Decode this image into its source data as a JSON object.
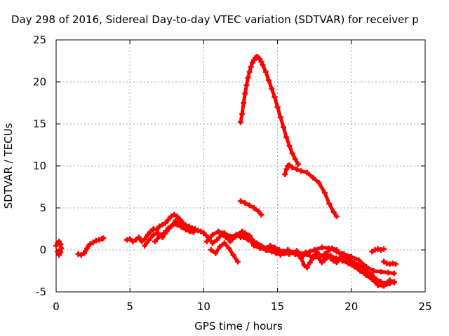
{
  "chart_data": {
    "type": "scatter",
    "title": "Day 298 of 2016, Sidereal Day-to-day VTEC variation (SDTVAR) for receiver p",
    "xlabel": "GPS time / hours",
    "ylabel": "SDTVAR / TECUs",
    "xlim": [
      0,
      25
    ],
    "ylim": [
      -5,
      25
    ],
    "xticks": [
      0,
      5,
      10,
      15,
      20,
      25
    ],
    "yticks": [
      -5,
      0,
      5,
      10,
      15,
      20,
      25
    ],
    "grid": true,
    "marker": "plus",
    "color": "#ff0000",
    "series": [
      {
        "x": [
          0.0,
          0.1,
          0.2,
          0.3,
          0.35,
          0.3,
          0.2,
          0.1
        ],
        "y": [
          0.5,
          0.8,
          1.0,
          0.7,
          0.2,
          -0.3,
          -0.6,
          -0.2
        ]
      },
      {
        "x": [
          1.5,
          1.7,
          1.9,
          2.0,
          2.1,
          2.2,
          2.3,
          2.5,
          2.7,
          2.9,
          3.1,
          3.2
        ],
        "y": [
          -0.5,
          -0.6,
          -0.4,
          -0.1,
          0.2,
          0.5,
          0.7,
          0.9,
          1.1,
          1.2,
          1.3,
          1.4
        ]
      },
      {
        "x": [
          4.8,
          5.0,
          5.2,
          5.4,
          5.6,
          5.8,
          6.0,
          6.2,
          6.4,
          6.6,
          6.8,
          7.0,
          7.2,
          7.4,
          7.6,
          7.8,
          8.0,
          8.2,
          8.4,
          8.6,
          8.8,
          9.0,
          9.2,
          9.4,
          9.6,
          9.8,
          10.0
        ],
        "y": [
          1.2,
          1.3,
          1.0,
          1.2,
          1.5,
          1.0,
          1.3,
          1.8,
          2.2,
          2.5,
          2.4,
          2.8,
          3.0,
          3.2,
          3.6,
          4.0,
          4.2,
          4.0,
          3.6,
          3.2,
          2.9,
          2.8,
          2.6,
          2.5,
          2.3,
          2.2,
          2.0
        ]
      },
      {
        "x": [
          6.0,
          6.3,
          6.6,
          6.9,
          7.2,
          7.5,
          7.8,
          8.1,
          8.4,
          8.7,
          9.0,
          9.3
        ],
        "y": [
          0.5,
          1.2,
          1.8,
          2.0,
          1.5,
          2.2,
          2.8,
          3.5,
          3.0,
          2.6,
          2.3,
          2.1
        ]
      },
      {
        "x": [
          6.7,
          7.0,
          7.3,
          7.6,
          7.9,
          8.2,
          8.5,
          8.8,
          9.1
        ],
        "y": [
          1.0,
          1.6,
          2.0,
          2.6,
          3.0,
          3.0,
          2.7,
          2.4,
          2.2
        ]
      },
      {
        "x": [
          10.0,
          10.3,
          10.6,
          10.9,
          11.2,
          11.5,
          11.8,
          12.1,
          12.4,
          12.7,
          13.0,
          13.3,
          13.6,
          13.9,
          14.2,
          14.5,
          14.8,
          15.1,
          15.4,
          15.7,
          16.0,
          16.3,
          16.6,
          16.9,
          17.2,
          17.5,
          17.8,
          18.1,
          18.4,
          18.7,
          19.0,
          19.3,
          19.6,
          19.9,
          20.2,
          20.5,
          20.8,
          21.1,
          21.4,
          21.7,
          22.0,
          22.3,
          22.6,
          22.9
        ],
        "y": [
          2.0,
          1.5,
          0.8,
          1.2,
          1.8,
          1.5,
          1.0,
          1.5,
          1.8,
          1.5,
          1.2,
          1.0,
          0.8,
          0.5,
          0.2,
          0.5,
          0.3,
          0.0,
          -0.2,
          0.0,
          -0.3,
          -0.1,
          -0.5,
          -0.3,
          -0.2,
          0.0,
          -0.5,
          -0.8,
          -0.2,
          0.2,
          0.0,
          -0.5,
          -1.0,
          -1.2,
          -1.5,
          -1.8,
          -2.2,
          -2.6,
          -3.0,
          -3.5,
          -3.8,
          -4.0,
          -3.6,
          -3.9
        ]
      },
      {
        "x": [
          10.2,
          10.6,
          11.0,
          11.4,
          11.8,
          12.2,
          12.6,
          13.0,
          13.4,
          13.8,
          14.2,
          14.6,
          15.0,
          15.4,
          15.8,
          16.2,
          16.6,
          17.0,
          17.4,
          17.8,
          18.2,
          18.6,
          19.0,
          19.4,
          19.8,
          20.2,
          20.6,
          21.0,
          21.4,
          21.8,
          22.2,
          22.6,
          22.9
        ],
        "y": [
          1.0,
          1.8,
          2.2,
          2.0,
          1.6,
          1.8,
          2.2,
          1.5,
          0.5,
          0.2,
          0.0,
          0.2,
          -0.2,
          -0.4,
          -0.3,
          -0.5,
          -0.8,
          -0.5,
          -1.0,
          -0.8,
          -0.5,
          -0.7,
          -1.0,
          -1.3,
          -1.6,
          -2.0,
          -2.5,
          -3.0,
          -3.5,
          -4.2,
          -4.3,
          -4.0,
          -3.8
        ]
      },
      {
        "x": [
          10.5,
          10.8,
          11.1,
          11.4,
          11.7,
          12.0,
          12.3
        ],
        "y": [
          0.0,
          -0.4,
          0.4,
          0.8,
          0.2,
          -0.6,
          -1.4
        ]
      },
      {
        "x": [
          12.5,
          12.8,
          13.1,
          13.4,
          13.7,
          14.0,
          14.3,
          14.6,
          14.9,
          15.2,
          15.5,
          15.8
        ],
        "y": [
          1.5,
          2.0,
          1.7,
          1.0,
          0.6,
          0.2,
          0.0,
          -0.2,
          -0.4,
          -0.6,
          -0.4,
          -0.5
        ]
      },
      {
        "x": [
          16.2,
          16.4,
          16.6,
          16.8,
          17.0,
          17.2,
          17.4,
          17.6,
          17.8,
          18.0,
          18.2,
          18.4,
          18.6,
          18.8,
          19.0,
          19.2,
          19.4,
          19.6,
          19.8,
          20.0,
          20.2,
          20.4,
          20.6
        ],
        "y": [
          -0.5,
          -0.3,
          -1.0,
          -1.8,
          -2.1,
          -1.5,
          -0.8,
          -0.5,
          -1.0,
          -1.5,
          -1.2,
          -0.8,
          -1.0,
          -1.3,
          -1.5,
          -1.0,
          -0.5,
          -0.8,
          -1.2,
          -1.4,
          -1.6,
          -1.8,
          -2.0
        ]
      },
      {
        "x": [
          17.5,
          18.0,
          18.5,
          19.0,
          19.5,
          20.0,
          20.5,
          21.0,
          21.5,
          22.0,
          22.5,
          22.9
        ],
        "y": [
          0.0,
          0.3,
          0.2,
          -0.2,
          -0.5,
          -0.8,
          -1.2,
          -2.0,
          -2.5,
          -2.6,
          -2.7,
          -2.8
        ]
      },
      {
        "x": [
          21.4,
          21.6,
          21.8,
          22.0,
          22.2
        ],
        "y": [
          -0.2,
          0.0,
          0.1,
          0.0,
          0.1
        ]
      },
      {
        "x": [
          22.2,
          22.4,
          22.6,
          22.8,
          23.0
        ],
        "y": [
          -1.4,
          -1.6,
          -1.7,
          -1.6,
          -1.7
        ]
      },
      {
        "x": [
          12.5,
          12.6,
          12.7,
          12.8,
          12.9,
          13.0,
          13.1,
          13.2,
          13.3,
          13.4,
          13.5,
          13.6,
          13.7,
          13.8,
          13.9,
          14.0,
          14.2,
          14.4,
          14.6,
          14.8,
          15.0,
          15.2,
          15.4,
          15.6,
          15.8,
          16.0,
          16.2,
          16.4
        ],
        "y": [
          15.2,
          16.2,
          17.5,
          18.6,
          19.6,
          20.5,
          21.2,
          21.8,
          22.3,
          22.6,
          22.9,
          23.0,
          22.9,
          22.7,
          22.4,
          22.0,
          21.2,
          20.2,
          19.2,
          18.2,
          17.0,
          15.8,
          14.6,
          13.4,
          12.4,
          11.5,
          10.8,
          10.2
        ]
      },
      {
        "x": [
          15.5,
          15.6,
          15.7,
          15.8,
          16.0,
          16.3,
          16.6,
          17.0,
          17.4,
          17.8,
          18.2,
          18.5,
          18.8,
          19.0
        ],
        "y": [
          9.0,
          9.6,
          10.0,
          10.1,
          9.8,
          9.6,
          9.4,
          9.2,
          8.6,
          8.0,
          6.8,
          5.5,
          4.5,
          4.0
        ]
      },
      {
        "x": [
          12.5,
          12.8,
          13.1,
          13.4,
          13.7,
          13.9
        ],
        "y": [
          5.8,
          5.6,
          5.3,
          5.0,
          4.6,
          4.2
        ]
      }
    ]
  }
}
